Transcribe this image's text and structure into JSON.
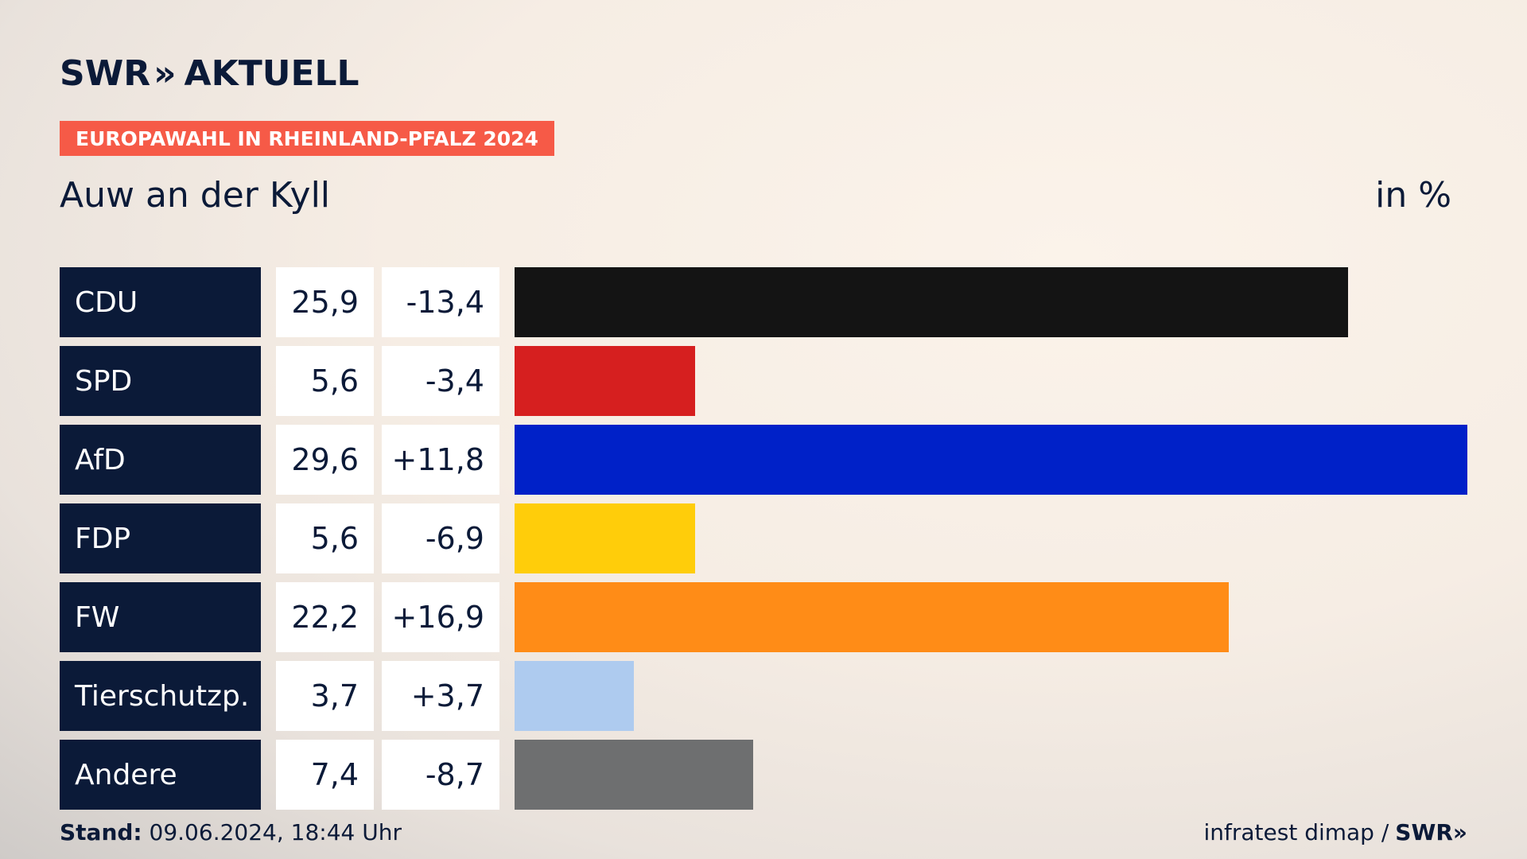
{
  "brand": {
    "logo_text": "SWR",
    "logo_chevron": "»",
    "logo_suffix": "AKTUELL"
  },
  "badge_text": "EUROPAWAHL IN RHEINLAND-PFALZ 2024",
  "unit_label": "in %",
  "chart_data": {
    "type": "bar",
    "title": "Auw an der Kyll",
    "orientation": "horizontal",
    "categories": [
      "CDU",
      "SPD",
      "AfD",
      "FDP",
      "FW",
      "Tierschutzp.",
      "Andere"
    ],
    "values": [
      25.9,
      5.6,
      29.6,
      5.6,
      22.2,
      3.7,
      7.4
    ],
    "value_labels": [
      "25,9",
      "5,6",
      "29,6",
      "5,6",
      "22,2",
      "3,7",
      "7,4"
    ],
    "change_labels": [
      "-13,4",
      "-3,4",
      "+11,8",
      "-6,9",
      "+16,9",
      "+3,7",
      "-8,7"
    ],
    "colors": [
      "#141414",
      "#d61f1f",
      "#0021c8",
      "#ffcd0a",
      "#ff8c17",
      "#aecbef",
      "#6e6f70"
    ],
    "xlim": [
      0,
      29.6
    ],
    "grid": false,
    "legend": "none"
  },
  "footer": {
    "stand_label": "Stand:",
    "stand_value": "09.06.2024, 18:44 Uhr",
    "source_text": "infratest dimap /",
    "source_brand": "SWR»"
  }
}
